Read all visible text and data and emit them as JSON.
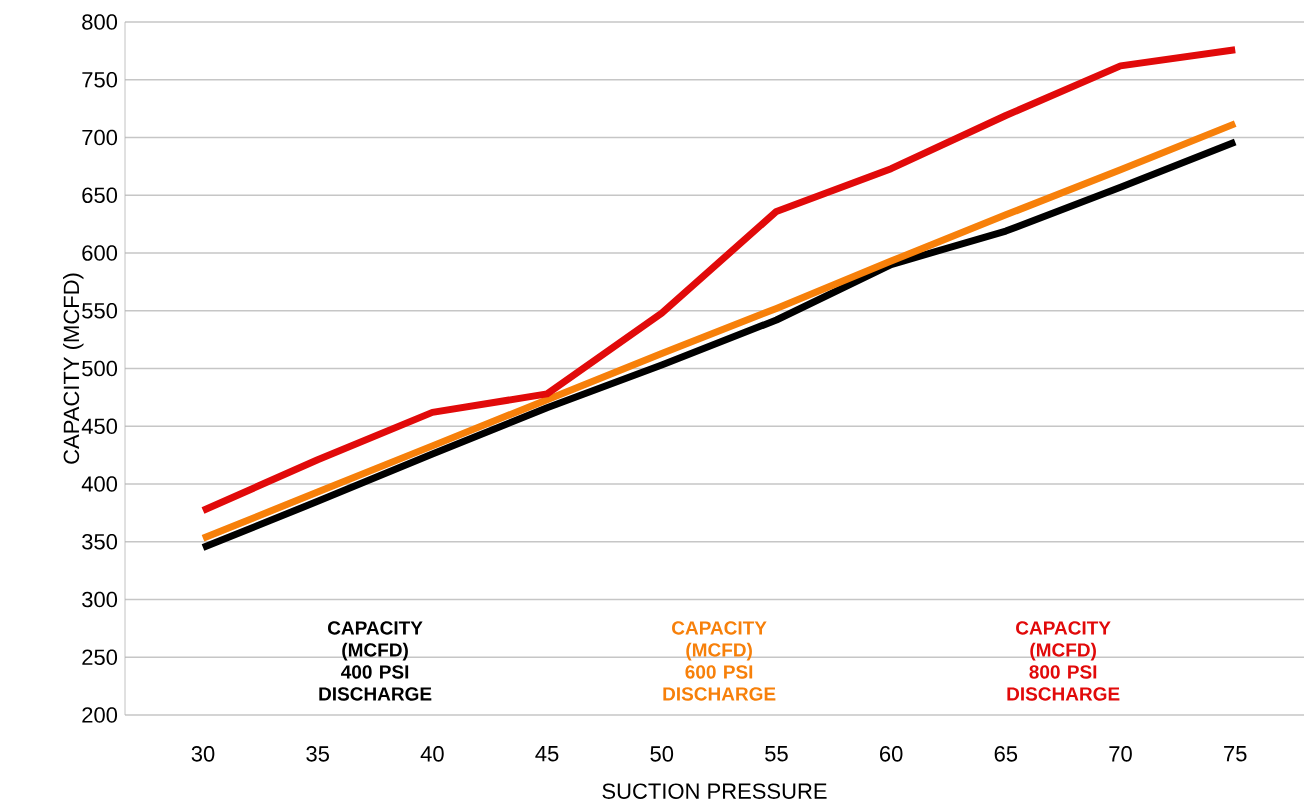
{
  "chart_data": {
    "type": "line",
    "xlabel": "SUCTION PRESSURE",
    "ylabel": "CAPACITY (MCFD)",
    "x": [
      30,
      35,
      40,
      45,
      50,
      55,
      60,
      65,
      70,
      75
    ],
    "series": [
      {
        "name": "CAPACITY (MCFD) 400 PSI DISCHARGE",
        "color": "#000000",
        "values": [
          345,
          385,
          426,
          466,
          503,
          542,
          590,
          619,
          657,
          696
        ]
      },
      {
        "name": "CAPACITY (MCFD) 600 PSI DISCHARGE",
        "color": "#f7800a",
        "values": [
          353,
          393,
          433,
          473,
          513,
          552,
          593,
          633,
          672,
          712
        ]
      },
      {
        "name": "CAPACITY (MCFD) 800 PSI DISCHARGE",
        "color": "#e10a0a",
        "values": [
          377,
          421,
          462,
          478,
          548,
          636,
          673,
          719,
          762,
          776
        ]
      }
    ],
    "xlim": [
      26.6,
      78
    ],
    "ylim": [
      200,
      800
    ],
    "xticks": [
      30,
      35,
      40,
      45,
      50,
      55,
      60,
      65,
      70,
      75
    ],
    "yticks": [
      200,
      250,
      300,
      350,
      400,
      450,
      500,
      550,
      600,
      650,
      700,
      750,
      800
    ],
    "grid": "y",
    "marker": "none",
    "line_style": "solid"
  }
}
